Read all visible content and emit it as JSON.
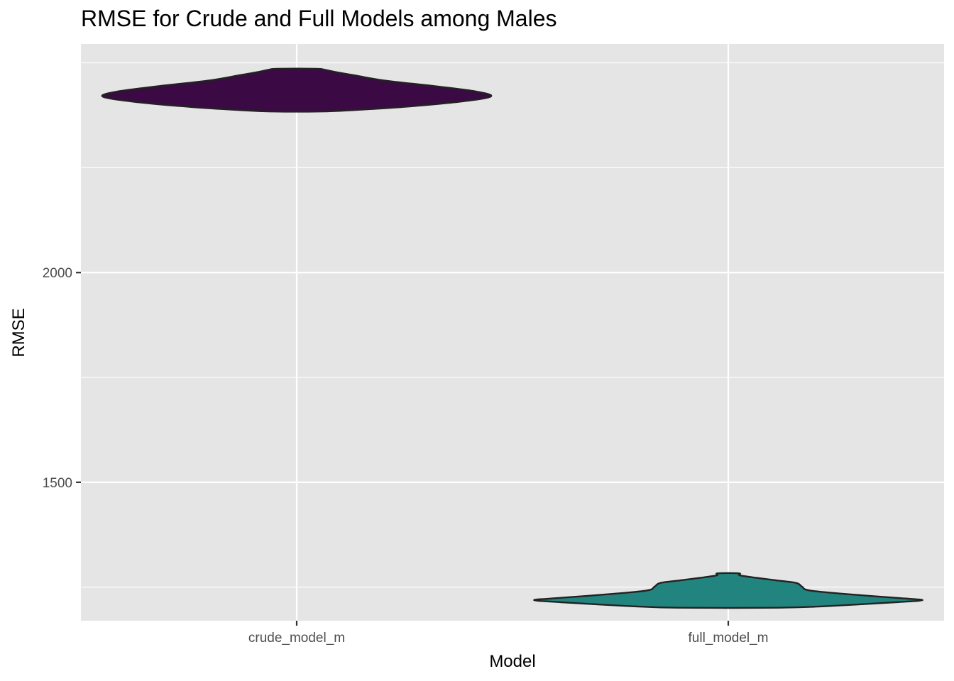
{
  "chart_data": {
    "type": "violin",
    "title": "RMSE for Crude and Full Models among Males",
    "xlabel": "Model",
    "ylabel": "RMSE",
    "categories": [
      "crude_model_m",
      "full_model_m"
    ],
    "ylim": [
      1170,
      2545
    ],
    "y_ticks": [
      1500,
      2000
    ],
    "grid": true,
    "colors": {
      "panel": "#e5e5e5",
      "grid": "#ffffff",
      "outline": "#222222"
    },
    "series": [
      {
        "category": "crude_model_m",
        "fill": "#3b0a45",
        "min": 2384,
        "max": 2486,
        "density": [
          [
            2384,
            0.12
          ],
          [
            2387,
            0.28
          ],
          [
            2395,
            0.55
          ],
          [
            2408,
            0.85
          ],
          [
            2420,
            1.0
          ],
          [
            2432,
            0.92
          ],
          [
            2445,
            0.7
          ],
          [
            2458,
            0.45
          ],
          [
            2470,
            0.3
          ],
          [
            2478,
            0.2
          ],
          [
            2484,
            0.14
          ],
          [
            2486,
            0.1
          ]
        ]
      },
      {
        "category": "full_model_m",
        "fill": "#21847e",
        "min": 1201,
        "max": 1283,
        "density": [
          [
            1201,
            0.26
          ],
          [
            1205,
            0.52
          ],
          [
            1214,
            0.86
          ],
          [
            1219,
            1.0
          ],
          [
            1224,
            0.88
          ],
          [
            1233,
            0.62
          ],
          [
            1242,
            0.42
          ],
          [
            1251,
            0.38
          ],
          [
            1260,
            0.35
          ],
          [
            1266,
            0.25
          ],
          [
            1272,
            0.15
          ],
          [
            1278,
            0.06
          ],
          [
            1283,
            0.055
          ]
        ]
      }
    ]
  }
}
